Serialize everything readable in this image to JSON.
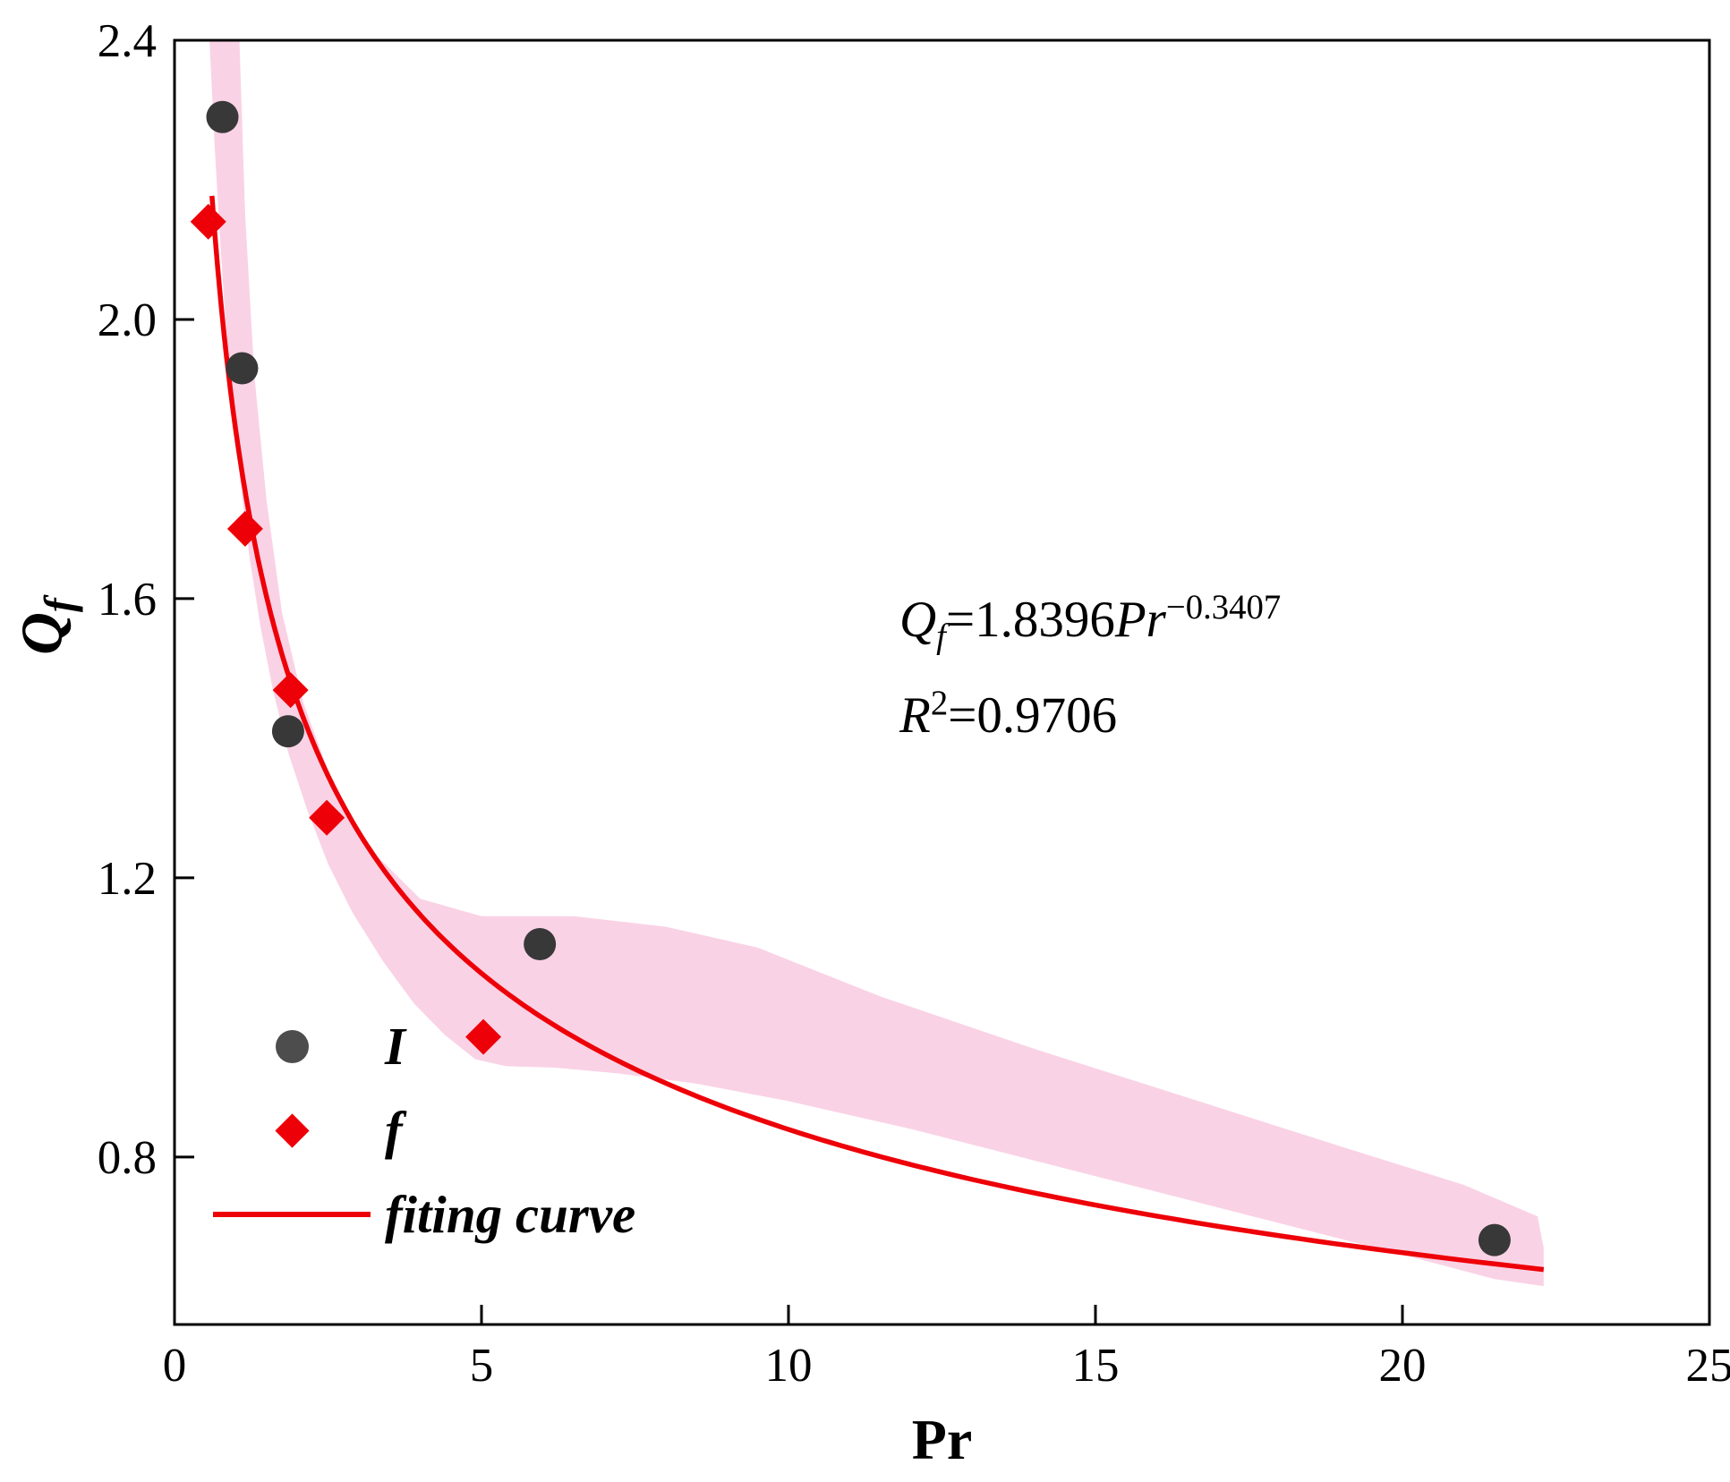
{
  "chart_data": {
    "type": "scatter",
    "title": "",
    "xlabel": "Pr",
    "ylabel": {
      "var": "Q",
      "sub": "f"
    },
    "xlim": [
      0,
      25
    ],
    "ylim": [
      0.56,
      2.4
    ],
    "grid": false,
    "legend_position": "lower-left",
    "x_ticks": [
      0,
      5,
      10,
      15,
      20,
      25
    ],
    "x_tick_labels": [
      "0",
      "5",
      "10",
      "15",
      "20",
      "25"
    ],
    "y_ticks": [
      0.8,
      1.2,
      1.6,
      2.0,
      2.4
    ],
    "y_tick_labels": [
      "0.8",
      "1.2",
      "1.6",
      "2.0",
      "2.4"
    ],
    "series": [
      {
        "name": "I",
        "marker": "circle",
        "color": "#383838",
        "points": [
          [
            0.78,
            2.29
          ],
          [
            1.1,
            1.93
          ],
          [
            1.85,
            1.41
          ],
          [
            5.95,
            1.105
          ],
          [
            21.5,
            0.681
          ]
        ]
      },
      {
        "name": "f",
        "marker": "diamond",
        "color": "#ed0008",
        "points": [
          [
            0.55,
            2.14
          ],
          [
            1.15,
            1.7
          ],
          [
            1.89,
            1.469
          ],
          [
            2.48,
            1.286
          ],
          [
            5.03,
            0.972
          ]
        ]
      }
    ],
    "fit": {
      "name": "fiting curve",
      "color": "#ed0008",
      "a": 1.8396,
      "b": -0.3407,
      "x_start": 0.61,
      "x_end": 22.3
    },
    "band": {
      "color": "#fad2e5",
      "polygon": [
        [
          0.54,
          2.42
        ],
        [
          1.05,
          2.42
        ],
        [
          1.15,
          2.15
        ],
        [
          1.3,
          1.92
        ],
        [
          1.5,
          1.74
        ],
        [
          1.75,
          1.58
        ],
        [
          2.1,
          1.45
        ],
        [
          2.6,
          1.33
        ],
        [
          3.2,
          1.24
        ],
        [
          4.0,
          1.17
        ],
        [
          5.0,
          1.145
        ],
        [
          6.5,
          1.145
        ],
        [
          8.0,
          1.13
        ],
        [
          9.5,
          1.1
        ],
        [
          11.5,
          1.03
        ],
        [
          14.0,
          0.955
        ],
        [
          16.5,
          0.885
        ],
        [
          19.0,
          0.815
        ],
        [
          21.0,
          0.76
        ],
        [
          22.2,
          0.715
        ],
        [
          22.3,
          0.67
        ],
        [
          22.3,
          0.615
        ],
        [
          21.5,
          0.625
        ],
        [
          20.0,
          0.66
        ],
        [
          18.0,
          0.705
        ],
        [
          16.0,
          0.75
        ],
        [
          14.0,
          0.795
        ],
        [
          12.0,
          0.84
        ],
        [
          10.0,
          0.88
        ],
        [
          8.5,
          0.905
        ],
        [
          7.2,
          0.92
        ],
        [
          6.2,
          0.928
        ],
        [
          5.4,
          0.93
        ],
        [
          4.9,
          0.94
        ],
        [
          4.4,
          0.975
        ],
        [
          3.9,
          1.02
        ],
        [
          3.4,
          1.08
        ],
        [
          2.9,
          1.15
        ],
        [
          2.5,
          1.22
        ],
        [
          2.15,
          1.3
        ],
        [
          1.85,
          1.38
        ],
        [
          1.6,
          1.47
        ],
        [
          1.4,
          1.56
        ],
        [
          1.22,
          1.66
        ],
        [
          1.07,
          1.77
        ],
        [
          0.94,
          1.88
        ],
        [
          0.83,
          2.0
        ],
        [
          0.73,
          2.13
        ],
        [
          0.64,
          2.27
        ],
        [
          0.57,
          2.4
        ],
        [
          0.54,
          2.42
        ]
      ]
    },
    "legend": {
      "items": [
        {
          "label": "I"
        },
        {
          "label": "f"
        },
        {
          "label": "fiting curve"
        }
      ]
    },
    "annotation": {
      "formula": {
        "var": "Q",
        "var_sub": "f",
        "eq": "=1.8396",
        "base": "Pr",
        "exp": "−0.3407"
      },
      "r2": {
        "var": "R",
        "sup": "2",
        "eq": "=0.9706"
      }
    }
  }
}
